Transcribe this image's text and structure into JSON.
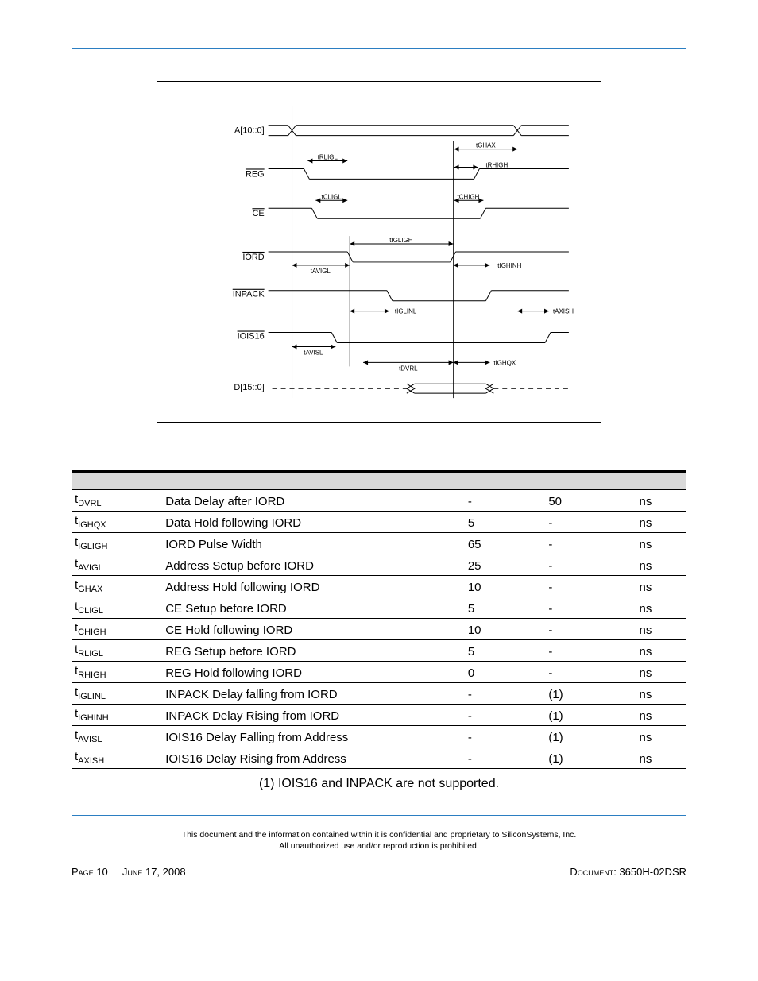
{
  "rule_color": "#2b7ec2",
  "diagram": {
    "signals": [
      {
        "label": "A[10::0]",
        "overbar": false
      },
      {
        "label": "REG",
        "overbar": true
      },
      {
        "label": "CE",
        "overbar": true
      },
      {
        "label": "IORD",
        "overbar": true
      },
      {
        "label": "INPACK",
        "overbar": true
      },
      {
        "label": "IOIS16",
        "overbar": true
      },
      {
        "label": "D[15::0]",
        "overbar": false
      }
    ],
    "timing_labels": [
      "tGHAX",
      "tRLIGL",
      "tRHIGH",
      "tCLIGL",
      "tCHIGH",
      "tIGLIGH",
      "tAVIGL",
      "tIGHINH",
      "tIGLINL",
      "tAXISH",
      "tAVISL",
      "tDVRL",
      "tIGHQX"
    ],
    "box_border_color": "#000000",
    "signal_font_size": 11,
    "timing_font_size": 8
  },
  "table": {
    "header_bg": "#d9d9d9",
    "border_color": "#000000",
    "rows": [
      {
        "sym_main": "t",
        "sym_sub": "DVRL",
        "desc": "Data Delay after IORD",
        "min": "-",
        "max": "50",
        "unit": "ns"
      },
      {
        "sym_main": "t",
        "sym_sub": "IGHQX",
        "desc": "Data Hold following IORD",
        "min": "5",
        "max": "-",
        "unit": "ns"
      },
      {
        "sym_main": "t",
        "sym_sub": "IGLIGH",
        "desc": "IORD Pulse Width",
        "min": "65",
        "max": "-",
        "unit": "ns"
      },
      {
        "sym_main": "t",
        "sym_sub": "AVIGL",
        "desc": "Address Setup before IORD",
        "min": "25",
        "max": "-",
        "unit": "ns"
      },
      {
        "sym_main": "t",
        "sym_sub": "GHAX",
        "desc": "Address Hold following IORD",
        "min": "10",
        "max": "-",
        "unit": "ns"
      },
      {
        "sym_main": "t",
        "sym_sub": "CLIGL",
        "desc": "CE Setup before IORD",
        "min": "5",
        "max": "-",
        "unit": "ns"
      },
      {
        "sym_main": "t",
        "sym_sub": "CHIGH",
        "desc": "CE Hold following IORD",
        "min": "10",
        "max": "-",
        "unit": "ns"
      },
      {
        "sym_main": "t",
        "sym_sub": "RLIGL",
        "desc": "REG Setup before IORD",
        "min": "5",
        "max": "-",
        "unit": "ns"
      },
      {
        "sym_main": "t",
        "sym_sub": "RHIGH",
        "desc": "REG Hold following IORD",
        "min": "0",
        "max": "-",
        "unit": "ns"
      },
      {
        "sym_main": "t",
        "sym_sub": "IGLINL",
        "desc": "INPACK Delay falling from IORD",
        "min": "-",
        "max": "(1)",
        "unit": "ns"
      },
      {
        "sym_main": "t",
        "sym_sub": "IGHINH",
        "desc": "INPACK Delay Rising from IORD",
        "min": "-",
        "max": "(1)",
        "unit": "ns"
      },
      {
        "sym_main": "t",
        "sym_sub": "AVISL",
        "desc": "IOIS16 Delay Falling from Address",
        "min": "-",
        "max": "(1)",
        "unit": "ns"
      },
      {
        "sym_main": "t",
        "sym_sub": "AXISH",
        "desc": "IOIS16 Delay Rising from Address",
        "min": "-",
        "max": "(1)",
        "unit": "ns"
      }
    ]
  },
  "footnote": "(1) IOIS16 and INPACK are not supported.",
  "confidentiality_line1": "This document and the information contained within it is confidential and proprietary to SiliconSystems, Inc.",
  "confidentiality_line2": "All unauthorized use and/or reproduction is prohibited.",
  "footer": {
    "page_label": "Page",
    "page_num": "10",
    "date": "June 17, 2008",
    "doc_label": "Document:",
    "doc_num": "3650H-02DSR"
  }
}
